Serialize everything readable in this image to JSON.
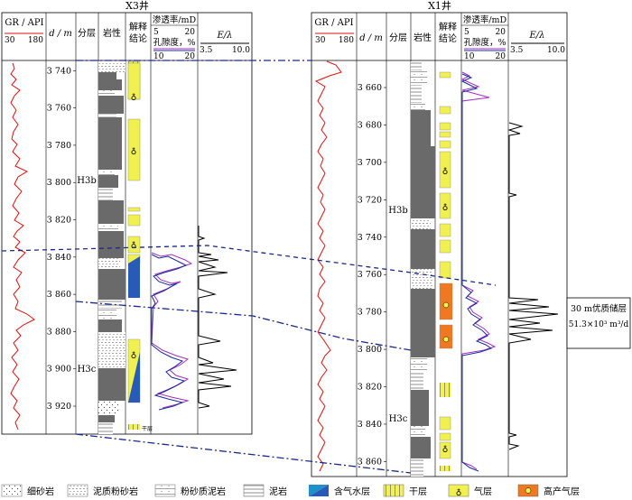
{
  "wells": [
    {
      "id": "x3",
      "title": "X3井",
      "header": {
        "gr_label": "GR / API",
        "gr_min": "30",
        "gr_max": "180",
        "depth_label": "d / m",
        "layer_label": "分层",
        "lith_label": "岩性",
        "interp_label_1": "解释",
        "interp_label_2": "结论",
        "perm_label": "渗透率/mD",
        "perm_min": "5",
        "perm_max": "20",
        "por_label": "孔隙度，%",
        "por_min": "10",
        "por_max": "20",
        "e_label": "E/λ",
        "e_min": "3.5",
        "e_max": "10.0"
      },
      "depth_range": [
        3735,
        3935
      ],
      "depth_ticks": [
        "3 740",
        "3 760",
        "3 780",
        "3 800",
        "3 820",
        "3 840",
        "3 860",
        "3 880",
        "3 900",
        "3 920"
      ],
      "layers": [
        "H3b",
        "H3c"
      ],
      "bottom_note": "干层"
    },
    {
      "id": "x1",
      "title": "X1井",
      "header": {
        "gr_label": "GR / API",
        "gr_min": "30",
        "gr_max": "180",
        "depth_label": "d / m",
        "layer_label": "分层",
        "lith_label": "岩性",
        "interp_label_1": "解释",
        "interp_label_2": "结论",
        "perm_label": "渗透率/mD",
        "perm_min": "5",
        "perm_max": "20",
        "por_label": "孔隙度，%",
        "por_min": "10",
        "por_max": "20",
        "e_label": "E/λ",
        "e_min": "3.5",
        "e_max": "10.0"
      },
      "depth_range": [
        3646,
        3868
      ],
      "depth_ticks": [
        "3 660",
        "3 680",
        "3 700",
        "3 720",
        "3 740",
        "3 760",
        "3 780",
        "3 800",
        "3 820",
        "3 840",
        "3 860"
      ],
      "layers": [
        "H3b",
        "H3c"
      ]
    }
  ],
  "annotation": {
    "line1": "30 m优质储层",
    "line2": "51.3×10³ m³/d"
  },
  "legend": [
    {
      "label": "细砂岩",
      "pattern": "fine-sandstone"
    },
    {
      "label": "泥质粉砂岩",
      "pattern": "argillaceous-siltstone"
    },
    {
      "label": "粉砂质泥岩",
      "pattern": "silty-mudstone"
    },
    {
      "label": "泥岩",
      "pattern": "mudstone"
    },
    {
      "label": "含气水层",
      "pattern": "gas-water-layer"
    },
    {
      "label": "干层",
      "pattern": "dry-layer"
    },
    {
      "label": "气层",
      "pattern": "gas-layer"
    },
    {
      "label": "高产气层",
      "pattern": "high-yield-gas-layer"
    }
  ],
  "colors": {
    "gr_curve": "#e01010",
    "perm_curve": "#a030c0",
    "por_curve": "#1a2a9a",
    "correlation_line": "#1a2a8a",
    "lithology": "#6a6a6a",
    "gas_layer": "#f0f050",
    "gas_water_layer": "#2a5ab8",
    "high_yield_gas": "#f07820"
  }
}
